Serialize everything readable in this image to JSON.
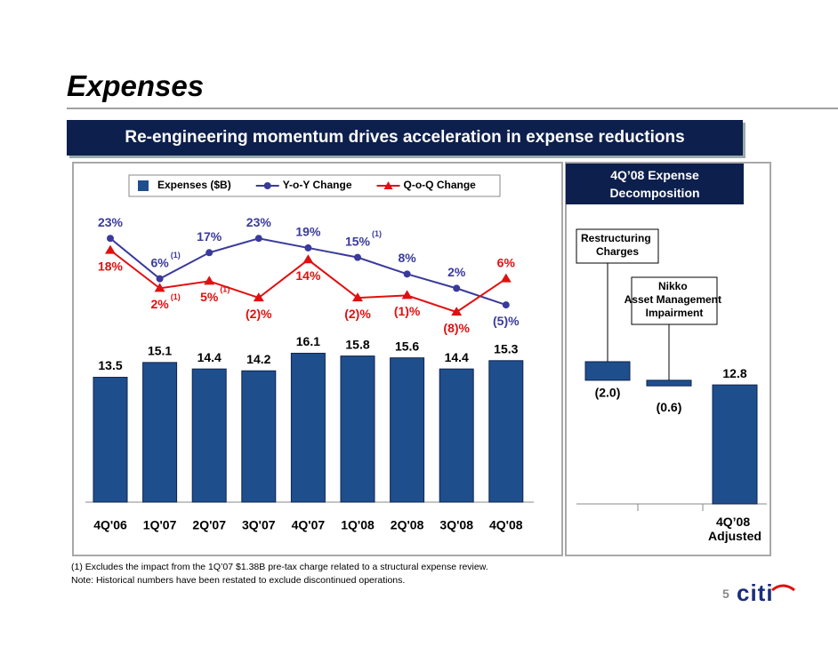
{
  "header": {
    "title": "Expenses",
    "banner": "Re-engineering momentum drives acceleration in expense reductions"
  },
  "chart_data": [
    {
      "type": "bar-line",
      "categories": [
        "4Q'06",
        "1Q'07",
        "2Q'07",
        "3Q'07",
        "4Q'07",
        "1Q'08",
        "2Q'08",
        "3Q'08",
        "4Q'08"
      ],
      "series": [
        {
          "name": "Expenses ($B)",
          "type": "bar",
          "color": "#1f4e8c",
          "values": [
            13.5,
            15.1,
            14.4,
            14.2,
            16.1,
            15.8,
            15.6,
            14.4,
            15.3
          ]
        },
        {
          "name": "Y-o-Y Change",
          "type": "line",
          "axis": "y2",
          "marker": "circle",
          "color": "#3a3a9c",
          "values": [
            23,
            6,
            17,
            23,
            19,
            15,
            8,
            2,
            -5
          ],
          "value_labels": [
            "23%",
            "6%",
            "17%",
            "23%",
            "19%",
            "15%",
            "8%",
            "2%",
            "(5)%"
          ]
        },
        {
          "name": "Q-o-Q Change",
          "type": "line",
          "axis": "y2",
          "marker": "triangle",
          "color": "#e01010",
          "values": [
            18,
            2,
            5,
            -2,
            14,
            -2,
            -1,
            -8,
            6
          ],
          "value_labels": [
            "18%",
            "2%",
            "5%",
            "(2)%",
            "14%",
            "(2)%",
            "(1)%",
            "(8)%",
            "6%"
          ]
        }
      ],
      "ylim": [
        0,
        37
      ],
      "y2lim": [
        -88,
        56
      ],
      "legend": "top",
      "annotations": [
        {
          "text": "(1)",
          "series": 1,
          "index": 1
        },
        {
          "text": "(1)",
          "series": 2,
          "index": 1
        },
        {
          "text": "(1)",
          "series": 2,
          "index": 2
        },
        {
          "text": "(1)",
          "series": 1,
          "index": 5
        }
      ]
    },
    {
      "type": "waterfall",
      "title": "4Q’08 Expense Decomposition",
      "categories": [
        "Restructuring Charges",
        "Nikko Asset Management Impairment",
        "4Q’08 Adjusted"
      ],
      "measure": [
        "relative",
        "relative",
        "total"
      ],
      "values": [
        -2.0,
        -0.6,
        12.8
      ],
      "value_labels": [
        "(2.0)",
        "(0.6)",
        "12.8"
      ],
      "color": "#1f4e8c",
      "ylim": [
        0,
        37
      ]
    }
  ],
  "footnotes": [
    "(1)  Excludes the impact from the 1Q’07 $1.38B pre-tax charge related to a structural expense review.",
    "Note: Historical numbers have been restated to exclude discontinued operations."
  ],
  "page_number": "5",
  "logo": "citi"
}
